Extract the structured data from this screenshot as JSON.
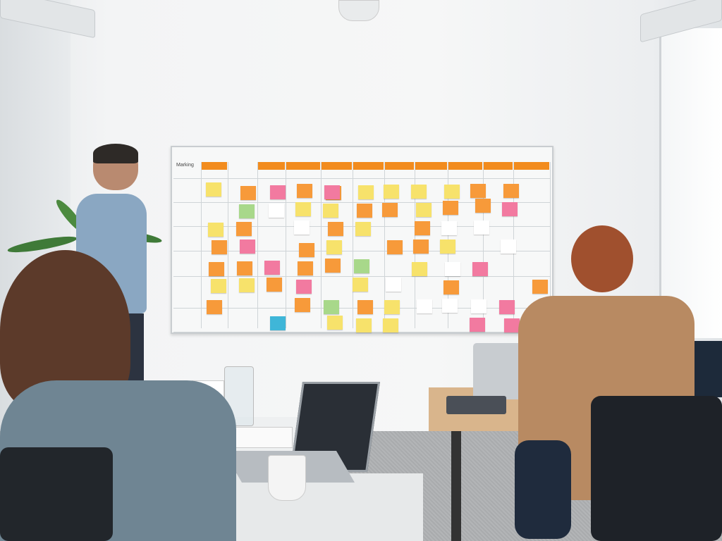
{
  "board": {
    "title": "Marking",
    "header_color": "#f28c1e",
    "note_colors": {
      "yellow": "#f7e26b",
      "orange": "#f79a3a",
      "pink": "#f27aa0",
      "green": "#a8d88a",
      "white": "#ffffff",
      "blue": "#3fb6d8"
    },
    "notes": [
      [
        0,
        0,
        "yellow"
      ],
      [
        1,
        0,
        "orange"
      ],
      [
        1,
        1,
        "green"
      ],
      [
        0,
        2,
        "yellow"
      ],
      [
        1,
        2,
        "orange"
      ],
      [
        0,
        3,
        "orange"
      ],
      [
        1,
        3,
        "pink"
      ],
      [
        0,
        4,
        "orange"
      ],
      [
        1,
        4,
        "orange"
      ],
      [
        2,
        4,
        "pink"
      ],
      [
        0,
        5,
        "yellow"
      ],
      [
        1,
        5,
        "yellow"
      ],
      [
        2,
        5,
        "orange"
      ],
      [
        0,
        6,
        "orange"
      ],
      [
        2,
        0,
        "pink"
      ],
      [
        2,
        1,
        "white"
      ],
      [
        3,
        0,
        "orange"
      ],
      [
        3,
        1,
        "yellow"
      ],
      [
        3,
        2,
        "white"
      ],
      [
        3,
        3,
        "orange"
      ],
      [
        3,
        4,
        "orange"
      ],
      [
        3,
        5,
        "pink"
      ],
      [
        3,
        6,
        "orange"
      ],
      [
        2,
        7,
        "blue"
      ],
      [
        4,
        7,
        "yellow"
      ],
      [
        4,
        0,
        "orange"
      ],
      [
        4,
        0.0,
        "pink"
      ],
      [
        4,
        1,
        "yellow"
      ],
      [
        4,
        2,
        "orange"
      ],
      [
        4,
        3,
        "yellow"
      ],
      [
        4,
        4,
        "orange"
      ],
      [
        4,
        6,
        "green"
      ],
      [
        5,
        0,
        "yellow"
      ],
      [
        5,
        1,
        "orange"
      ],
      [
        5,
        2,
        "yellow"
      ],
      [
        5,
        4,
        "green"
      ],
      [
        5,
        5,
        "yellow"
      ],
      [
        5,
        6,
        "orange"
      ],
      [
        5,
        7,
        "yellow"
      ],
      [
        6,
        0,
        "yellow"
      ],
      [
        6,
        1,
        "orange"
      ],
      [
        6,
        3,
        "orange"
      ],
      [
        6,
        5,
        "white"
      ],
      [
        6,
        6,
        "yellow"
      ],
      [
        6,
        7,
        "yellow"
      ],
      [
        7,
        0,
        "yellow"
      ],
      [
        7,
        1,
        "yellow"
      ],
      [
        7,
        2,
        "orange"
      ],
      [
        7,
        3,
        "orange"
      ],
      [
        7,
        4,
        "yellow"
      ],
      [
        7,
        6,
        "white"
      ],
      [
        8,
        0,
        "yellow"
      ],
      [
        8,
        0.9,
        "orange"
      ],
      [
        8,
        2,
        "white"
      ],
      [
        8,
        3,
        "yellow"
      ],
      [
        8,
        4,
        "white"
      ],
      [
        8,
        5,
        "orange"
      ],
      [
        8,
        6,
        "white"
      ],
      [
        9,
        0,
        "orange"
      ],
      [
        9,
        0.8,
        "orange"
      ],
      [
        9,
        2,
        "white"
      ],
      [
        9,
        4,
        "pink"
      ],
      [
        9,
        6,
        "white"
      ],
      [
        9,
        7,
        "pink"
      ],
      [
        10,
        0,
        "orange"
      ],
      [
        10,
        1,
        "pink"
      ],
      [
        10,
        3,
        "white"
      ],
      [
        10,
        6,
        "pink"
      ],
      [
        10,
        7,
        "pink"
      ],
      [
        11,
        5,
        "orange"
      ]
    ]
  }
}
